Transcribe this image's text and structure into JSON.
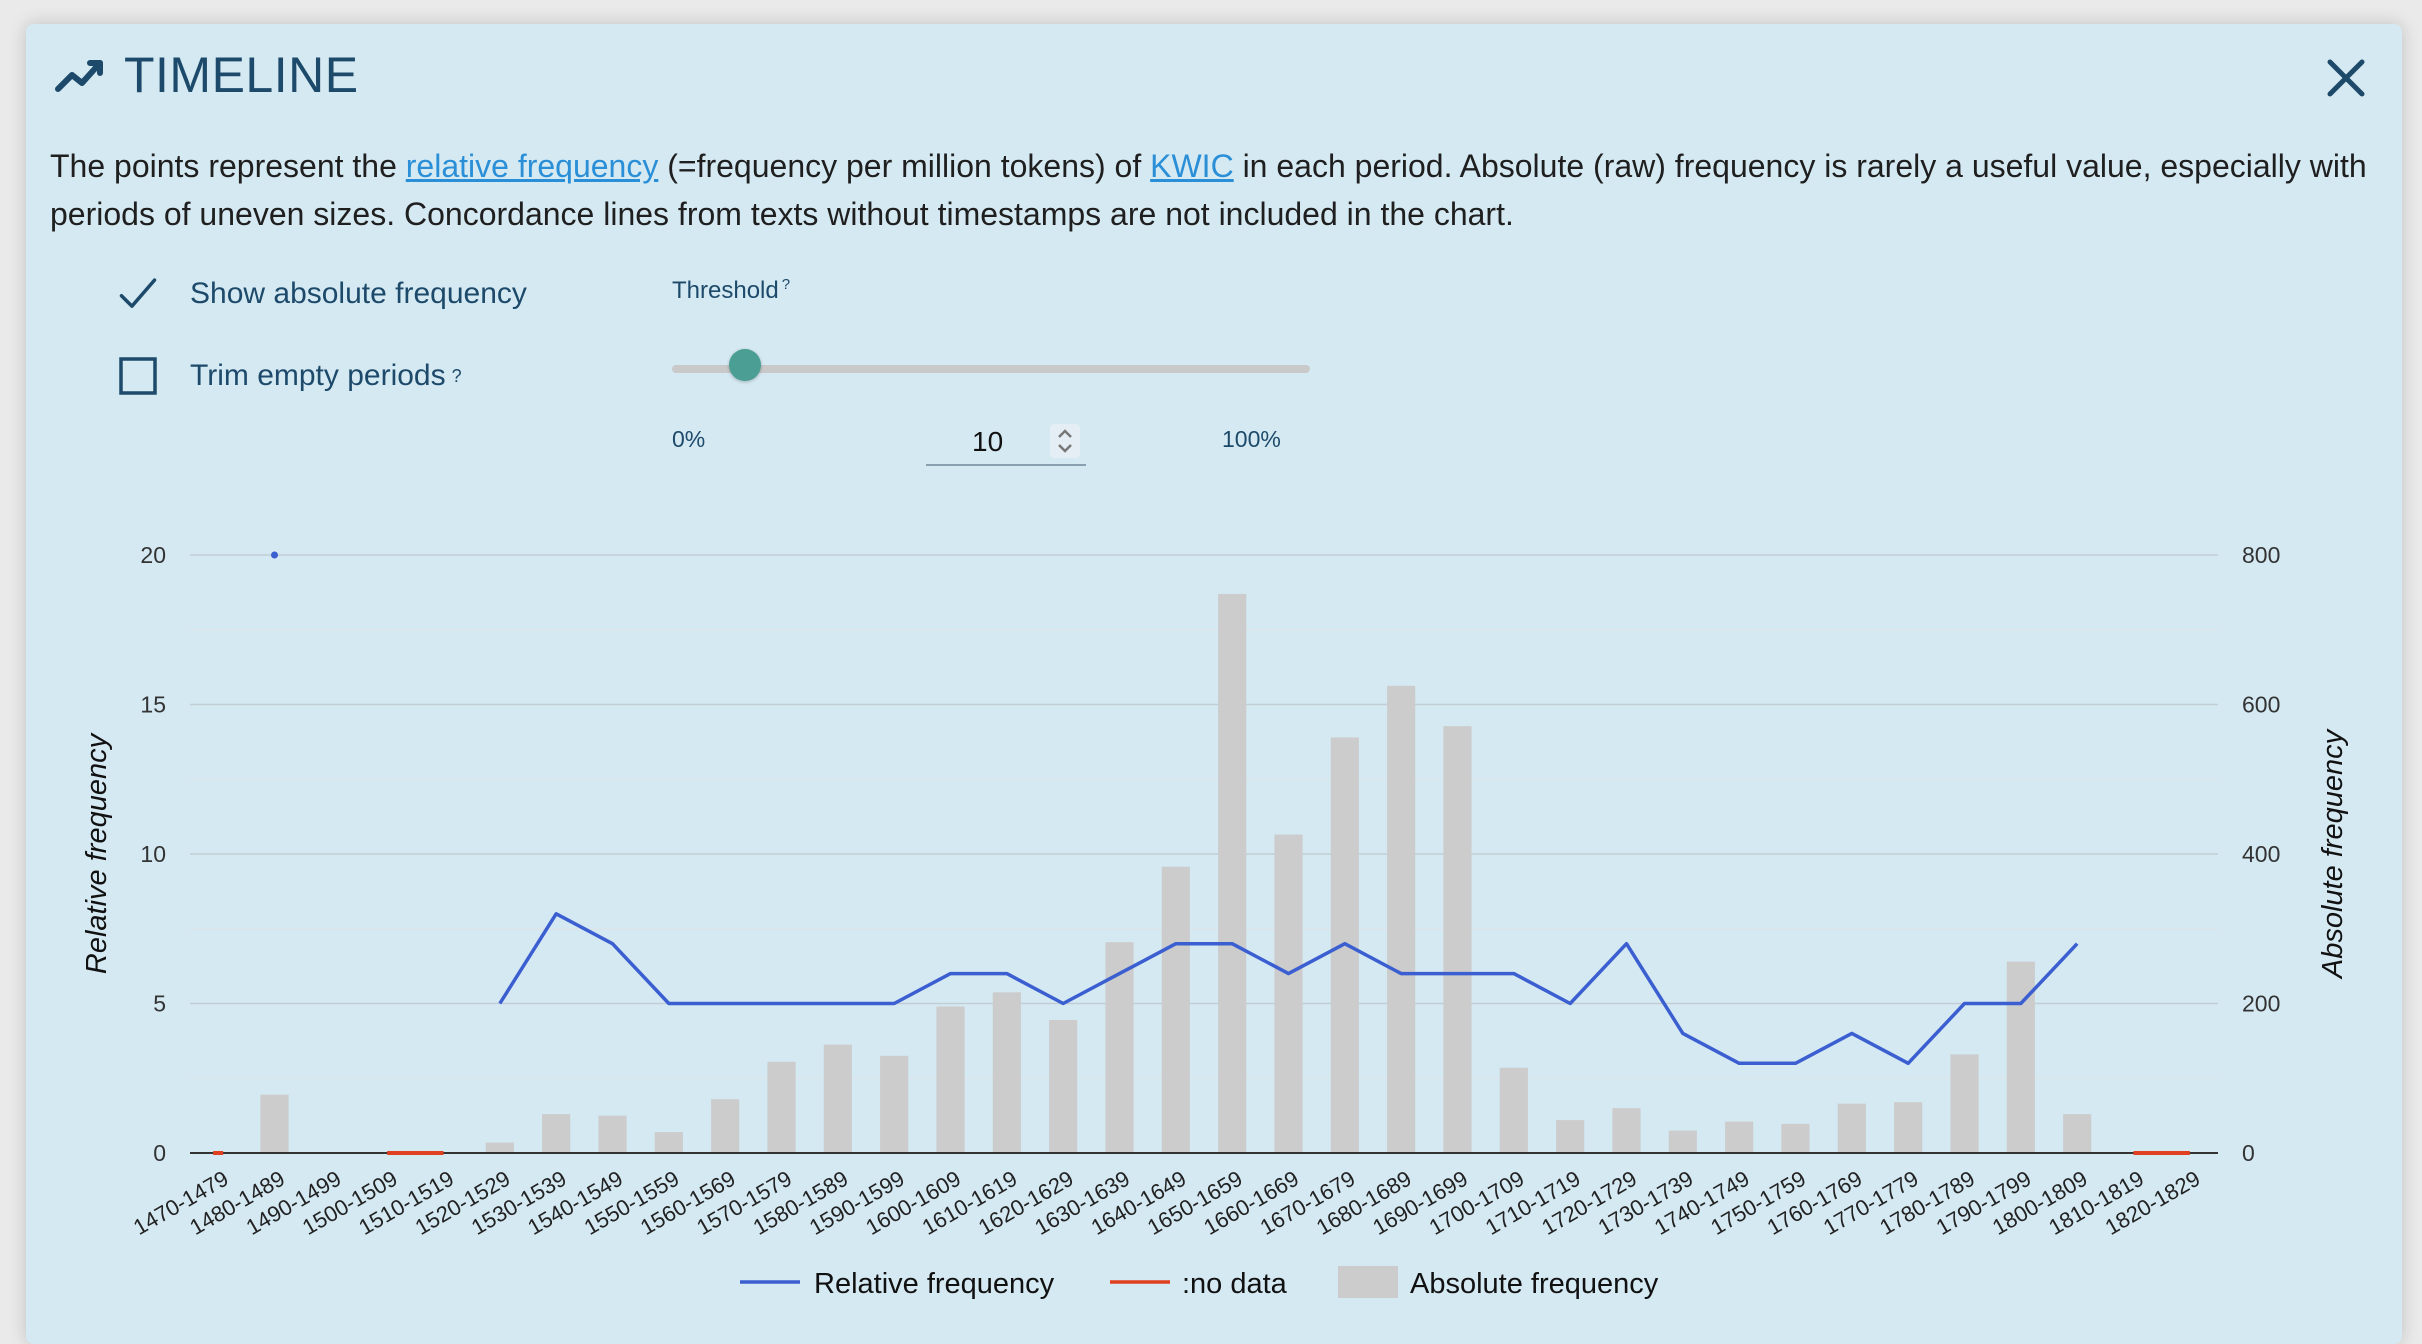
{
  "dialog": {
    "title": "TIMELINE",
    "title_icon": "trend-line-icon",
    "close_icon": "close-icon"
  },
  "description": {
    "part1": "The points represent the ",
    "link1": "relative frequency",
    "part2": " (=frequency per million tokens) of ",
    "link2": "KWIC",
    "part3": " in each period. Absolute (raw) frequency is rarely a useful value, especially with periods of uneven sizes. Concordance lines from texts without timestamps are not included in the chart."
  },
  "options": {
    "show_absolute_label": "Show absolute frequency",
    "show_absolute_checked": true,
    "trim_empty_label": "Trim empty periods",
    "trim_empty_checked": false,
    "help_mark": "?"
  },
  "threshold": {
    "label": "Threshold",
    "min_label": "0%",
    "max_label": "100%",
    "value": "10",
    "fraction": 0.1
  },
  "colors": {
    "line": "#3b5fd0",
    "no_data": "#e0401f",
    "bars": "#cccccc",
    "accent": "#4a9e93"
  },
  "chart_data": {
    "type": "bar",
    "categories": [
      "1470-1479",
      "1480-1489",
      "1490-1499",
      "1500-1509",
      "1510-1519",
      "1520-1529",
      "1530-1539",
      "1540-1549",
      "1550-1559",
      "1560-1569",
      "1570-1579",
      "1580-1589",
      "1590-1599",
      "1600-1609",
      "1610-1619",
      "1620-1629",
      "1630-1639",
      "1640-1649",
      "1650-1659",
      "1660-1669",
      "1670-1679",
      "1680-1689",
      "1690-1699",
      "1700-1709",
      "1710-1719",
      "1720-1729",
      "1730-1739",
      "1740-1749",
      "1750-1759",
      "1760-1769",
      "1770-1779",
      "1780-1789",
      "1790-1799",
      "1800-1809",
      "1810-1819",
      "1820-1829"
    ],
    "absolute": [
      0,
      78,
      0,
      0,
      0,
      14,
      52,
      50,
      28,
      72,
      122,
      145,
      130,
      196,
      215,
      178,
      282,
      383,
      748,
      426,
      556,
      625,
      571,
      114,
      44,
      60,
      30,
      42,
      39,
      66,
      68,
      132,
      256,
      52,
      0,
      0
    ],
    "relative": [
      null,
      20,
      null,
      null,
      null,
      5,
      8,
      7,
      5,
      5,
      5,
      5,
      5,
      6,
      6,
      5,
      6,
      7,
      7,
      6,
      7,
      6,
      6,
      6,
      5,
      7,
      4,
      3,
      3,
      4,
      3,
      5,
      5,
      7,
      null,
      null
    ],
    "no_data_ranges": [
      [
        0,
        0
      ],
      [
        3,
        4
      ],
      [
        34,
        35
      ]
    ],
    "ylabel_left": "Relative frequency",
    "ylabel_right": "Absolute frequency",
    "ylim_left": [
      0,
      20
    ],
    "ylim_right": [
      0,
      800
    ],
    "left_ticks": [
      0,
      5,
      10,
      15,
      20
    ],
    "right_ticks": [
      0,
      200,
      400,
      600,
      800
    ],
    "legend": [
      "Relative frequency",
      ":no data",
      "Absolute frequency"
    ],
    "legend_position": "bottom",
    "grid": true
  }
}
